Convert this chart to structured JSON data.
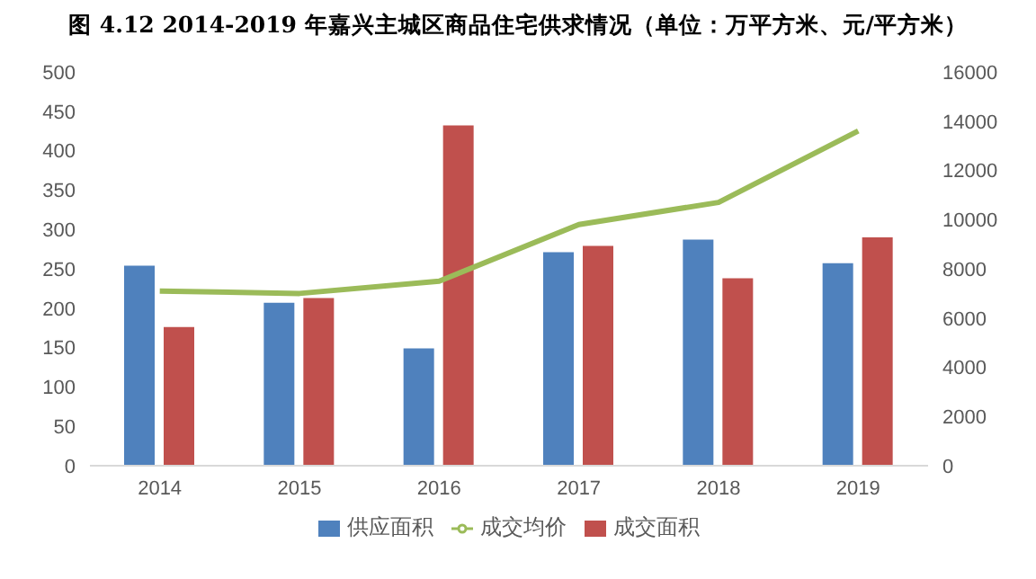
{
  "chart_data": {
    "type": "bar",
    "title": "图 4.12 2014-2019 年嘉兴主城区商品住宅供求情况（单位：万平方米、元/平方米）",
    "categories": [
      "2014",
      "2015",
      "2016",
      "2017",
      "2018",
      "2019"
    ],
    "series": [
      {
        "name": "供应面积",
        "color": "#4f81bd",
        "values": [
          254,
          207,
          149,
          271,
          287,
          257
        ]
      },
      {
        "name": "成交面积",
        "color": "#c0504d",
        "values": [
          176,
          213,
          432,
          279,
          238,
          290
        ]
      },
      {
        "name": "成交均价",
        "color": "#9bbb59",
        "type": "line",
        "axis": "y2",
        "values": [
          7100,
          7000,
          7500,
          9800,
          10700,
          13600
        ]
      }
    ],
    "ylim": [
      0,
      500
    ],
    "yticks": [
      0,
      50,
      100,
      150,
      200,
      250,
      300,
      350,
      400,
      450,
      500
    ],
    "y2lim": [
      0,
      16000
    ],
    "y2ticks": [
      0,
      2000,
      4000,
      6000,
      8000,
      10000,
      12000,
      14000,
      16000
    ],
    "grid": false,
    "legend": "bottom",
    "marker": "none"
  }
}
